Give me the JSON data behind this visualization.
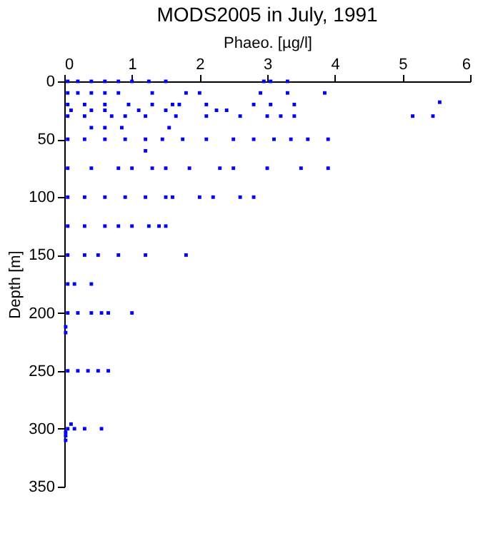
{
  "chart_data": {
    "type": "scatter",
    "title": "MODS2005 in July, 1991",
    "xlabel": "Phaeo. [µg/l]",
    "ylabel": "Depth [m]",
    "xlim": [
      0,
      6
    ],
    "xticks": [
      0,
      1,
      2,
      3,
      4,
      5,
      6
    ],
    "ylim": [
      350,
      0
    ],
    "yticks": [
      0,
      50,
      100,
      150,
      200,
      250,
      300,
      350
    ],
    "grid": false,
    "marker": "square",
    "series": [
      {
        "color": "#0000ff",
        "x": [
          0.05,
          0.2,
          0.4,
          0.6,
          0.8,
          1.0,
          1.25,
          1.5,
          2.95,
          3.05,
          3.3,
          0.05,
          0.2,
          0.4,
          0.6,
          0.8,
          1.3,
          1.8,
          2.0,
          2.9,
          3.3,
          3.85,
          0.05,
          0.3,
          0.6,
          0.95,
          1.3,
          1.6,
          1.7,
          2.1,
          2.8,
          3.05,
          3.4,
          5.55,
          0.1,
          0.4,
          0.6,
          1.1,
          1.5,
          2.25,
          2.4,
          0.05,
          0.3,
          0.7,
          0.9,
          1.2,
          1.65,
          2.1,
          2.6,
          3.0,
          3.2,
          3.4,
          5.15,
          5.45,
          0.4,
          0.6,
          0.85,
          1.55,
          0.05,
          0.3,
          0.6,
          0.9,
          1.2,
          1.45,
          1.75,
          2.1,
          2.5,
          2.8,
          3.1,
          3.35,
          3.6,
          3.9,
          1.2,
          0.05,
          0.4,
          0.8,
          1.0,
          1.3,
          1.5,
          1.85,
          2.3,
          2.5,
          3.0,
          3.5,
          3.9,
          0.05,
          0.3,
          0.6,
          0.9,
          1.2,
          1.5,
          1.6,
          2.0,
          2.2,
          2.6,
          2.8,
          0.05,
          0.3,
          0.6,
          0.8,
          1.0,
          1.25,
          1.4,
          1.5,
          0.05,
          0.3,
          0.5,
          0.8,
          1.2,
          1.8,
          0.05,
          0.15,
          0.4,
          0.05,
          0.2,
          0.4,
          0.55,
          0.65,
          1.0,
          0.02,
          0.02,
          0.05,
          0.2,
          0.35,
          0.5,
          0.65,
          0.1,
          0.05,
          0.15,
          0.3,
          0.55,
          0.02,
          0.02,
          0.02
        ],
        "values": [
          0,
          0,
          0,
          0,
          0,
          0,
          0,
          0,
          0,
          0,
          0,
          10,
          10,
          10,
          10,
          10,
          10,
          10,
          10,
          10,
          10,
          10,
          20,
          20,
          20,
          20,
          20,
          20,
          20,
          20,
          20,
          20,
          20,
          18,
          25,
          25,
          25,
          25,
          25,
          25,
          25,
          30,
          30,
          30,
          30,
          30,
          30,
          30,
          30,
          30,
          30,
          30,
          30,
          30,
          40,
          40,
          40,
          40,
          50,
          50,
          50,
          50,
          50,
          50,
          50,
          50,
          50,
          50,
          50,
          50,
          50,
          50,
          60,
          75,
          75,
          75,
          75,
          75,
          75,
          75,
          75,
          75,
          75,
          75,
          75,
          100,
          100,
          100,
          100,
          100,
          100,
          100,
          100,
          100,
          100,
          100,
          125,
          125,
          125,
          125,
          125,
          125,
          125,
          125,
          150,
          150,
          150,
          150,
          150,
          150,
          175,
          175,
          175,
          200,
          200,
          200,
          200,
          200,
          200,
          212,
          217,
          250,
          250,
          250,
          250,
          250,
          296,
          300,
          300,
          300,
          300,
          303,
          306,
          310
        ]
      }
    ]
  }
}
